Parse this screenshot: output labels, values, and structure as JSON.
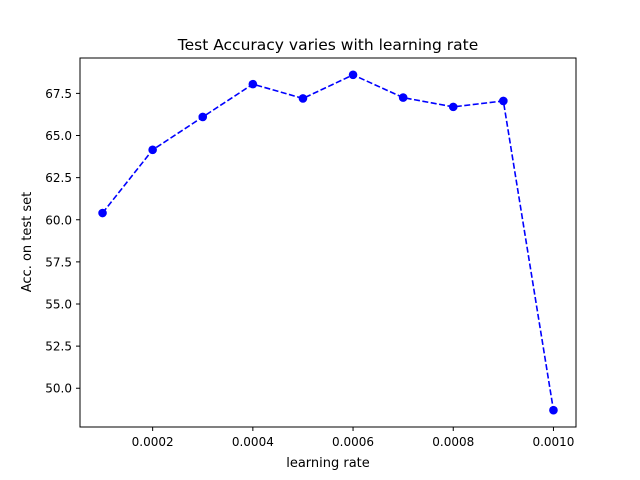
{
  "chart_data": {
    "type": "line",
    "title": "Test Accuracy varies with learning rate",
    "xlabel": "learning rate",
    "ylabel": "Acc. on test set",
    "x": [
      0.0001,
      0.0002,
      0.0003,
      0.0004,
      0.0005,
      0.0006,
      0.0007,
      0.0008,
      0.0009,
      0.001
    ],
    "series": [
      {
        "values": [
          60.4,
          64.15,
          66.1,
          68.05,
          67.2,
          68.6,
          67.25,
          66.7,
          67.05,
          48.7
        ],
        "color": "#0000ff",
        "line_style": "dashed",
        "marker": "circle"
      }
    ],
    "xlim": [
      5.5e-05,
      0.001045
    ],
    "ylim": [
      47.7,
      69.6
    ],
    "xticks": [
      0.0002,
      0.0004,
      0.0006,
      0.0008,
      0.001
    ],
    "xtick_labels": [
      "0.0002",
      "0.0004",
      "0.0006",
      "0.0008",
      "0.0010"
    ],
    "yticks": [
      50.0,
      52.5,
      55.0,
      57.5,
      60.0,
      62.5,
      65.0,
      67.5
    ],
    "ytick_labels": [
      "50.0",
      "52.5",
      "55.0",
      "57.5",
      "60.0",
      "62.5",
      "65.0",
      "67.5"
    ],
    "grid": false,
    "legend": "none"
  }
}
